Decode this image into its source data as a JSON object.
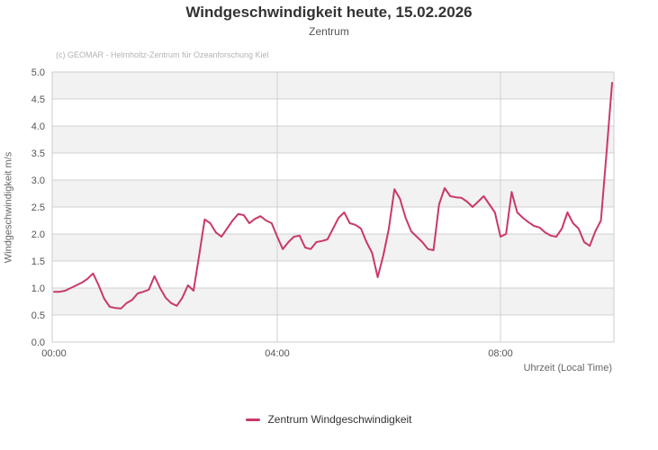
{
  "credits": "(c) GEOMAR - Helmholtz-Zentrum für Ozeanforschung Kiel",
  "colors": {
    "series": "#c93a66",
    "band_fill": "#f2f2f2",
    "grid_line": "#d0d0d0",
    "plot_border": "#cccccc",
    "title_text": "#333333",
    "subtitle_text": "#555555",
    "tick_text": "#555555",
    "axis_title_text": "#666666",
    "credits_text": "#b3b3b3"
  },
  "chart_data": {
    "type": "line",
    "title": "Windgeschwindigkeit heute, 15.02.2026",
    "subtitle": "Zentrum",
    "xlabel": "Uhrzeit (Local Time)",
    "ylabel": "Windgeschwindigkeit m/s",
    "ylim": [
      0.0,
      5.0
    ],
    "y_tick_step": 0.5,
    "y_tick_labels": [
      "0.0",
      "0.5",
      "1.0",
      "1.5",
      "2.0",
      "2.5",
      "3.0",
      "3.5",
      "4.0",
      "4.5",
      "5.0"
    ],
    "xlim_hours": [
      0,
      10.03
    ],
    "x_ticks": [
      {
        "hour": 0,
        "label": "00:00"
      },
      {
        "hour": 4,
        "label": "04:00"
      },
      {
        "hour": 8,
        "label": "08:00"
      }
    ],
    "grid": "horizontal gridlines every 0.5, vertical gridlines at x ticks, alternating gray bands between y gridlines",
    "legend_position": "bottom-center",
    "series": [
      {
        "name": "Zentrum Windgeschwindigkeit",
        "color": "#c93a66",
        "x_start_hour": 0,
        "x_step_hours": 0.1,
        "values": [
          0.93,
          0.93,
          0.95,
          1.0,
          1.05,
          1.1,
          1.17,
          1.27,
          1.05,
          0.8,
          0.65,
          0.63,
          0.62,
          0.72,
          0.78,
          0.9,
          0.93,
          0.97,
          1.22,
          1.0,
          0.82,
          0.72,
          0.67,
          0.82,
          1.05,
          0.95,
          1.6,
          2.27,
          2.2,
          2.03,
          1.95,
          2.1,
          2.25,
          2.37,
          2.35,
          2.2,
          2.28,
          2.33,
          2.25,
          2.2,
          1.95,
          1.72,
          1.85,
          1.95,
          1.97,
          1.75,
          1.72,
          1.85,
          1.87,
          1.9,
          2.1,
          2.3,
          2.4,
          2.2,
          2.17,
          2.1,
          1.85,
          1.65,
          1.2,
          1.6,
          2.1,
          2.83,
          2.65,
          2.3,
          2.05,
          1.95,
          1.85,
          1.72,
          1.7,
          2.55,
          2.85,
          2.7,
          2.68,
          2.67,
          2.6,
          2.5,
          2.6,
          2.7,
          2.55,
          2.4,
          1.95,
          2.0,
          2.78,
          2.4,
          2.3,
          2.22,
          2.15,
          2.12,
          2.03,
          1.97,
          1.95,
          2.1,
          2.4,
          2.2,
          2.1,
          1.85,
          1.78,
          2.05,
          2.25,
          3.5,
          4.8
        ]
      }
    ]
  },
  "legend": {
    "items": [
      {
        "label": "Zentrum Windgeschwindigkeit",
        "color": "#c93a66"
      }
    ]
  }
}
